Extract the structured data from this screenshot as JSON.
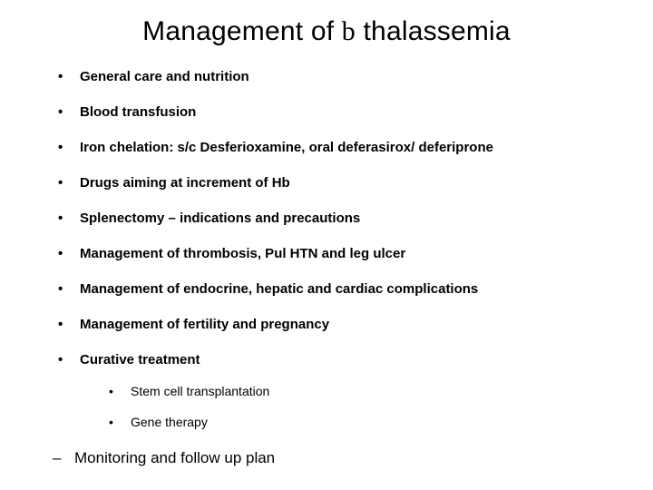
{
  "title_prefix": "Management of ",
  "title_beta": "b",
  "title_suffix": " thalassemia",
  "bullets": [
    "General care and nutrition",
    "Blood transfusion",
    "Iron chelation: s/c Desferioxamine, oral deferasirox/ deferiprone",
    "Drugs aiming at increment of Hb",
    "Splenectomy – indications and precautions",
    "Management of thrombosis, Pul HTN and leg ulcer",
    "Management of endocrine, hepatic and cardiac complications",
    "Management of fertility and pregnancy",
    "Curative treatment"
  ],
  "sub_bullets": [
    "Stem cell transplantation",
    "Gene therapy"
  ],
  "dash_item": "Monitoring and follow up plan",
  "style": {
    "background_color": "#ffffff",
    "text_color": "#000000",
    "title_fontsize": 30,
    "bullet_fontsize": 15,
    "sub_fontsize": 14,
    "dash_fontsize": 17,
    "font_family": "Arial"
  }
}
